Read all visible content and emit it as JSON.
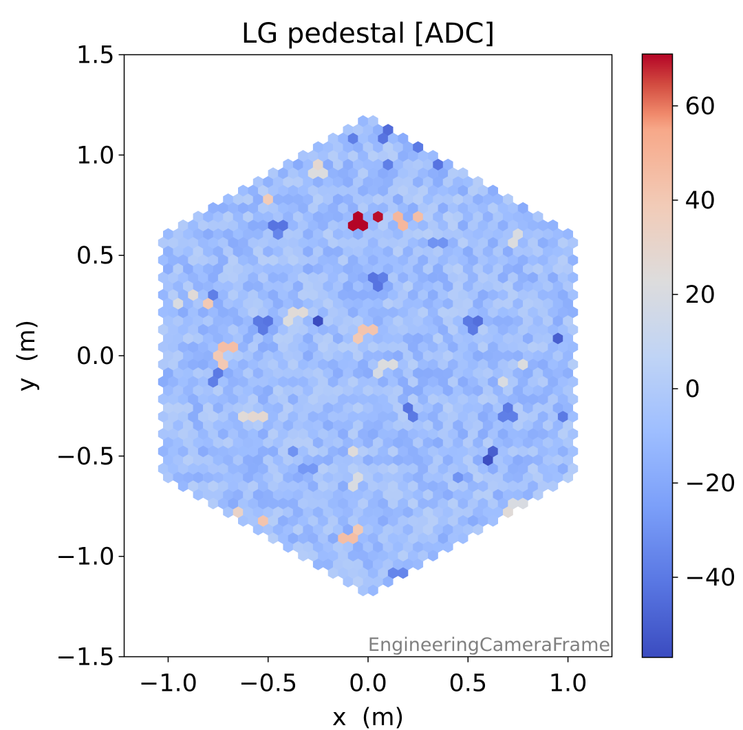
{
  "chart_data": {
    "type": "heatmap",
    "title": "LG pedestal [ADC]",
    "xlabel": "x  (m)",
    "ylabel": "y  (m)",
    "xlim": [
      -1.22,
      1.22
    ],
    "ylim": [
      -1.5,
      1.5
    ],
    "xticks": [
      -1.0,
      -0.5,
      0.0,
      0.5,
      1.0
    ],
    "xtick_labels": [
      "−1.0",
      "−0.5",
      "0.0",
      "0.5",
      "1.0"
    ],
    "yticks": [
      1.5,
      1.0,
      0.5,
      0.0,
      -0.5,
      -1.0,
      -1.5
    ],
    "ytick_labels": [
      "1.5",
      "1.0",
      "0.5",
      "0.0",
      "−0.5",
      "−1.0",
      "−1.5"
    ],
    "frame_label": "EngineeringCameraFrame",
    "colormap": "coolwarm",
    "colorbar": {
      "vmin": -57,
      "vmax": 71,
      "ticks": [
        60,
        40,
        20,
        0,
        -20,
        -40
      ],
      "tick_labels": [
        "60",
        "40",
        "20",
        "0",
        "−20",
        "−40"
      ]
    },
    "camera": {
      "shape": "hexagon",
      "radius_m": 1.2,
      "pixel_pitch_m": 0.05
    },
    "notable_pixels": [
      {
        "x": -0.05,
        "y": 0.67,
        "value": 71
      },
      {
        "x": 0.03,
        "y": 0.7,
        "value": 70
      },
      {
        "x": 0.17,
        "y": 0.67,
        "value": 48
      },
      {
        "x": 0.25,
        "y": 0.7,
        "value": 45
      },
      {
        "x": -0.49,
        "y": 0.79,
        "value": 38
      },
      {
        "x": -0.51,
        "y": 0.76,
        "value": 33
      },
      {
        "x": -0.27,
        "y": 0.95,
        "value": 28
      },
      {
        "x": -0.25,
        "y": 0.92,
        "value": 22
      },
      {
        "x": -0.82,
        "y": 0.25,
        "value": 40
      },
      {
        "x": -0.86,
        "y": 0.3,
        "value": 25
      },
      {
        "x": -0.97,
        "y": 0.27,
        "value": 20
      },
      {
        "x": -0.7,
        "y": 0.06,
        "value": 45
      },
      {
        "x": -0.73,
        "y": -0.02,
        "value": 40
      },
      {
        "x": 0.0,
        "y": 0.13,
        "value": 42
      },
      {
        "x": -0.03,
        "y": 0.09,
        "value": 40
      },
      {
        "x": -0.35,
        "y": 0.2,
        "value": 25
      },
      {
        "x": -0.38,
        "y": 0.16,
        "value": 22
      },
      {
        "x": 0.1,
        "y": -0.06,
        "value": 22
      },
      {
        "x": 0.07,
        "y": -0.1,
        "value": 18
      },
      {
        "x": -0.55,
        "y": -0.29,
        "value": 28
      },
      {
        "x": -0.63,
        "y": -0.32,
        "value": 25
      },
      {
        "x": -0.73,
        "y": -0.79,
        "value": 38
      },
      {
        "x": -0.64,
        "y": -0.76,
        "value": 32
      },
      {
        "x": -0.63,
        "y": -0.85,
        "value": 45
      },
      {
        "x": -0.54,
        "y": -0.82,
        "value": 42
      },
      {
        "x": -0.1,
        "y": -0.91,
        "value": 45
      },
      {
        "x": -0.07,
        "y": -0.87,
        "value": 40
      },
      {
        "x": 0.72,
        "y": -0.78,
        "value": 25
      },
      {
        "x": 0.75,
        "y": -0.74,
        "value": 20
      },
      {
        "x": 0.72,
        "y": 0.56,
        "value": 22
      },
      {
        "x": 0.74,
        "y": 0.59,
        "value": 20
      },
      {
        "x": 0.77,
        "y": -0.05,
        "value": 22
      },
      {
        "x": 0.67,
        "y": -0.12,
        "value": 20
      },
      {
        "x": -0.07,
        "y": -0.49,
        "value": 24
      },
      {
        "x": -0.06,
        "y": -0.63,
        "value": 20
      },
      {
        "x": -0.24,
        "y": 0.18,
        "value": -57
      },
      {
        "x": 0.58,
        "y": -0.51,
        "value": -56
      },
      {
        "x": 0.61,
        "y": -0.47,
        "value": -50
      },
      {
        "x": 0.97,
        "y": 0.08,
        "value": -50
      },
      {
        "x": 1.07,
        "y": 0.11,
        "value": -54
      },
      {
        "x": 0.55,
        "y": 0.18,
        "value": -44
      },
      {
        "x": 0.52,
        "y": 0.15,
        "value": -40
      },
      {
        "x": 0.07,
        "y": 1.09,
        "value": -42
      },
      {
        "x": 0.1,
        "y": 1.12,
        "value": -45
      },
      {
        "x": -0.07,
        "y": 1.08,
        "value": -38
      },
      {
        "x": 0.27,
        "y": 1.04,
        "value": -40
      },
      {
        "x": 0.33,
        "y": 0.97,
        "value": -42
      },
      {
        "x": -0.45,
        "y": 0.66,
        "value": -42
      },
      {
        "x": -0.47,
        "y": 0.62,
        "value": -35
      },
      {
        "x": 0.03,
        "y": 0.37,
        "value": -42
      },
      {
        "x": 0.06,
        "y": 0.4,
        "value": -38
      },
      {
        "x": -0.52,
        "y": 0.18,
        "value": -42
      },
      {
        "x": -0.53,
        "y": 0.15,
        "value": -40
      },
      {
        "x": -0.75,
        "y": -0.08,
        "value": -40
      },
      {
        "x": -0.79,
        "y": -0.12,
        "value": -38
      },
      {
        "x": 0.22,
        "y": -0.26,
        "value": -42
      },
      {
        "x": 0.21,
        "y": -0.3,
        "value": -40
      },
      {
        "x": 0.72,
        "y": -0.27,
        "value": -40
      },
      {
        "x": 0.7,
        "y": -0.3,
        "value": -38
      },
      {
        "x": 0.97,
        "y": -0.32,
        "value": -40
      },
      {
        "x": 1.06,
        "y": -0.29,
        "value": -44
      },
      {
        "x": 0.12,
        "y": 0.95,
        "value": -38
      },
      {
        "x": -0.78,
        "y": 0.32,
        "value": -38
      },
      {
        "x": -0.38,
        "y": -0.48,
        "value": -30
      },
      {
        "x": 0.68,
        "y": -0.84,
        "value": -38
      },
      {
        "x": 0.15,
        "y": -1.08,
        "value": -35
      },
      {
        "x": 0.35,
        "y": 0.58,
        "value": -30
      },
      {
        "x": -0.3,
        "y": -0.55,
        "value": -28
      },
      {
        "x": 0.45,
        "y": -0.62,
        "value": -30
      }
    ]
  }
}
